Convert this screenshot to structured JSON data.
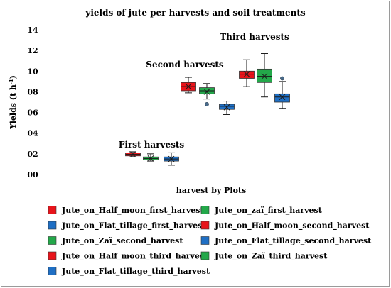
{
  "chart_data": {
    "type": "box",
    "title": "yields of jute per harvests and soil treatments",
    "xlabel": "harvest by Plots",
    "ylabel": "Yields (t h",
    "ylabel_sup": "-1",
    "ylabel_close": ")",
    "ylim": [
      0,
      14
    ],
    "yticks": [
      "00",
      "02",
      "04",
      "06",
      "08",
      "10",
      "12",
      "14"
    ],
    "ytick_values": [
      0,
      2,
      4,
      6,
      8,
      10,
      12,
      14
    ],
    "groups": [
      {
        "label": "First harvests"
      },
      {
        "label": "Second  harvests"
      },
      {
        "label": "Third  harvests"
      }
    ],
    "colors": {
      "half_moon": "#e8141b",
      "zai": "#23a84a",
      "flat_tillage": "#1f6fc4"
    },
    "series": [
      {
        "name": "Jute_on_Half_moon_first_harvest",
        "color_key": "half_moon",
        "group": 0,
        "min": 1.7,
        "q1": 1.8,
        "median": 1.95,
        "q3": 2.1,
        "max": 2.2,
        "mean": 1.95,
        "outliers": []
      },
      {
        "name": "Jute_on_zaï_first_harvest",
        "color_key": "zai",
        "group": 0,
        "min": 1.3,
        "q1": 1.4,
        "median": 1.55,
        "q3": 1.7,
        "max": 2.0,
        "mean": 1.55,
        "outliers": []
      },
      {
        "name": "Jute_on_Flat_tillage_first_harvest",
        "color_key": "flat_tillage",
        "group": 0,
        "min": 0.9,
        "q1": 1.3,
        "median": 1.5,
        "q3": 1.7,
        "max": 2.1,
        "mean": 1.5,
        "outliers": []
      },
      {
        "name": "Jute_on_Half_moon_second_harvest",
        "color_key": "half_moon",
        "group": 1,
        "min": 7.9,
        "q1": 8.1,
        "median": 8.5,
        "q3": 8.9,
        "max": 9.4,
        "mean": 8.5,
        "outliers": []
      },
      {
        "name": "Jute_on_Zaï_second_harvest",
        "color_key": "zai",
        "group": 1,
        "min": 7.3,
        "q1": 7.8,
        "median": 8.1,
        "q3": 8.4,
        "max": 8.8,
        "mean": 8.0,
        "outliers": [
          6.8
        ]
      },
      {
        "name": "Jute_on_Flat_tillage_second_harvest",
        "color_key": "flat_tillage",
        "group": 1,
        "min": 5.8,
        "q1": 6.3,
        "median": 6.6,
        "q3": 6.8,
        "max": 7.1,
        "mean": 6.5,
        "outliers": []
      },
      {
        "name": "Jute_on_Half_moon_third_harvest",
        "color_key": "half_moon",
        "group": 2,
        "min": 8.5,
        "q1": 9.3,
        "median": 9.7,
        "q3": 10.0,
        "max": 11.1,
        "mean": 9.7,
        "outliers": []
      },
      {
        "name": "Jute_on_Zaï_third_harvest",
        "color_key": "zai",
        "group": 2,
        "min": 7.5,
        "q1": 8.9,
        "median": 9.5,
        "q3": 10.2,
        "max": 11.7,
        "mean": 9.5,
        "outliers": []
      },
      {
        "name": "Jute_on_Flat_tillage_third_harvest",
        "color_key": "flat_tillage",
        "group": 2,
        "min": 6.4,
        "q1": 7.0,
        "median": 7.5,
        "q3": 7.8,
        "max": 9.0,
        "mean": 7.5,
        "outliers": [
          9.3
        ]
      }
    ],
    "legend": {
      "placement": "bottom",
      "columns": 2,
      "order": [
        "Jute_on_Half_moon_first_harvest",
        "Jute_on_zaï_first_harvest",
        "Jute_on_Flat_tillage_first_harvest",
        "Jute_on_Half_moon_second_harvest",
        "Jute_on_Zaï_second_harvest",
        "Jute_on_Flat_tillage_second_harvest",
        "Jute_on_Half_moon_third_harvest",
        "Jute_on_Zaï_third_harvest",
        "Jute_on_Flat_tillage_third_harvest"
      ]
    },
    "grid": false
  }
}
